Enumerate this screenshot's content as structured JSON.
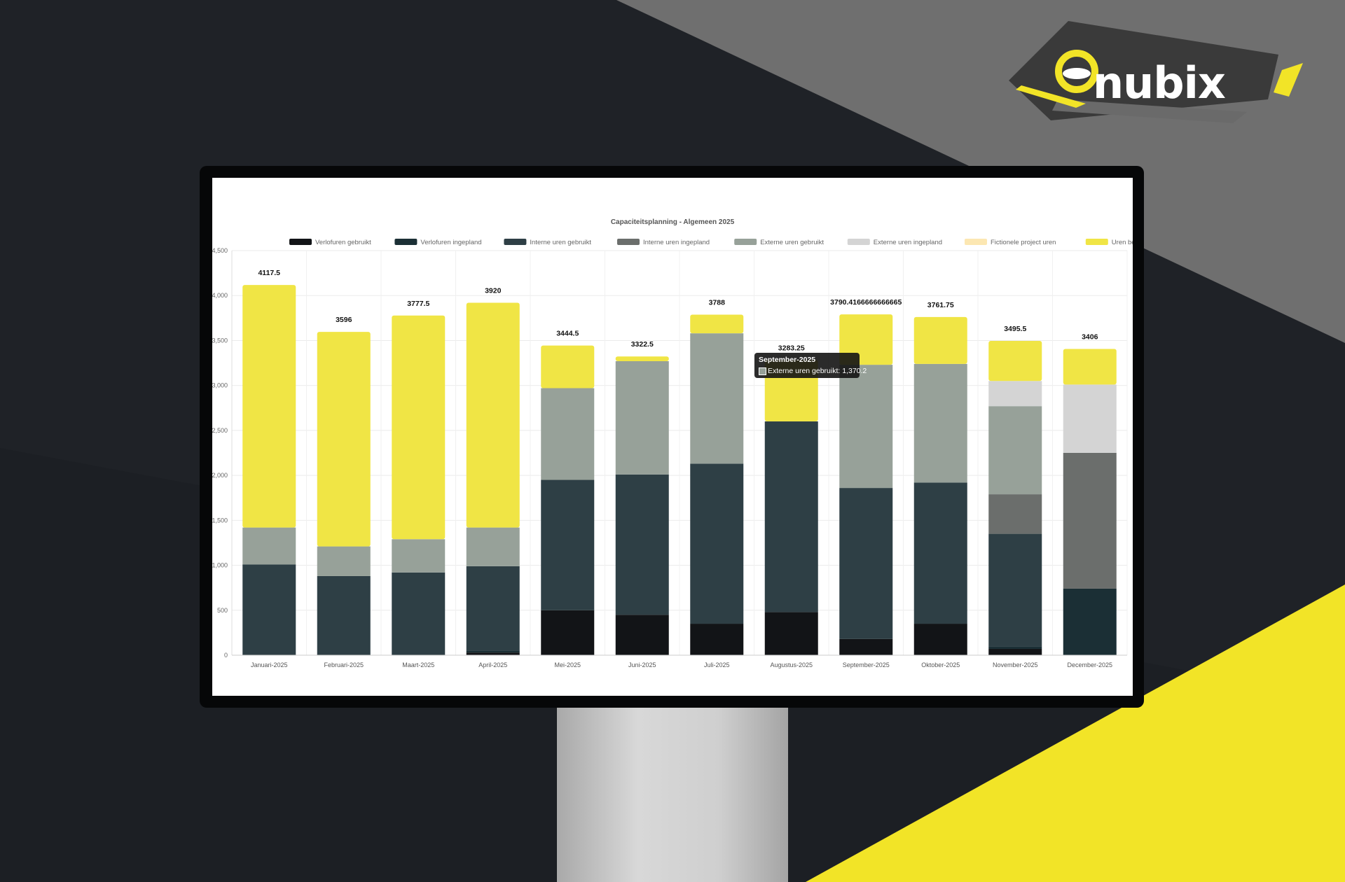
{
  "brand": {
    "logo_text": "nubix"
  },
  "tooltip": {
    "title": "September-2025",
    "body": "Externe uren gebruikt: 1,370.2"
  },
  "colors": {
    "verlof_gebruikt": "#121417",
    "verlof_ingepland": "#1b2f35",
    "interne_gebruikt": "#2e3f45",
    "interne_ingepland": "#6b6e6c",
    "externe_gebruikt": "#97a199",
    "externe_ingepland": "#d4d4d4",
    "fictionele": "#fce7b2",
    "beschikbaar": "#f0e545",
    "accent_yellow": "#f2e427"
  },
  "chart_data": {
    "type": "bar",
    "stacked": true,
    "title": "Capaciteitsplanning - Algemeen 2025",
    "legend_position": "top",
    "grid": true,
    "ylim": [
      0,
      4500
    ],
    "yticks": [
      "0",
      "500",
      "1,000",
      "1,500",
      "2,000",
      "2,500",
      "3,000",
      "3,500",
      "4,000",
      "4,500"
    ],
    "categories": [
      "Januari-2025",
      "Februari-2025",
      "Maart-2025",
      "April-2025",
      "Mei-2025",
      "Juni-2025",
      "Juli-2025",
      "Augustus-2025",
      "September-2025",
      "Oktober-2025",
      "November-2025",
      "December-2025"
    ],
    "totals": [
      "4117.5",
      "3596",
      "3777.5",
      "3920",
      "3444.5",
      "3322.5",
      "3788",
      "3283.25",
      "3790.4166666666665",
      "3761.75",
      "3495.5",
      "3406"
    ],
    "series": [
      {
        "name": "Verlofuren gebruikt",
        "color": "#121417",
        "values": [
          0,
          0,
          0,
          30,
          500,
          450,
          350,
          480,
          180,
          350,
          70,
          0
        ]
      },
      {
        "name": "Verlofuren ingepland",
        "color": "#1b2f35",
        "values": [
          0,
          0,
          0,
          20,
          0,
          0,
          0,
          0,
          0,
          0,
          30,
          740
        ]
      },
      {
        "name": "Interne uren gebruikt",
        "color": "#2e3f45",
        "values": [
          1010,
          880,
          920,
          940,
          1450,
          1560,
          1780,
          2120,
          1680,
          1570,
          1250,
          0
        ]
      },
      {
        "name": "Interne uren ingepland",
        "color": "#6b6e6c",
        "values": [
          0,
          0,
          0,
          0,
          0,
          0,
          0,
          0,
          0,
          0,
          440,
          1510
        ]
      },
      {
        "name": "Externe uren gebruikt",
        "color": "#97a199",
        "values": [
          410,
          330,
          370,
          430,
          1020,
          1260,
          1450,
          0,
          1370.2,
          1320,
          980,
          0
        ]
      },
      {
        "name": "Externe uren ingepland",
        "color": "#d4d4d4",
        "values": [
          0,
          0,
          0,
          0,
          0,
          0,
          0,
          0,
          0,
          0,
          280,
          760
        ]
      },
      {
        "name": "Fictionele project uren",
        "color": "#fce7b2",
        "values": [
          0,
          0,
          0,
          0,
          0,
          0,
          0,
          0,
          0,
          0,
          0,
          0
        ]
      },
      {
        "name": "Uren beschikbaar",
        "color": "#f0e545",
        "values": [
          2697.5,
          2386,
          2487.5,
          2500,
          474.5,
          52.5,
          208,
          683.25,
          560.22,
          521.75,
          445.5,
          396
        ]
      }
    ]
  }
}
